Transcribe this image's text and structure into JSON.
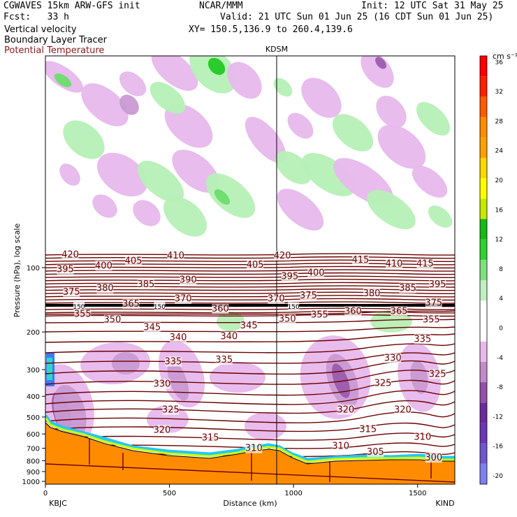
{
  "header": {
    "title_left": "CGWAVES 15km ARW-GFS init",
    "fcst": "Fcst:   33 h",
    "field1": "Vertical velocity",
    "field2": "Boundary Layer Tracer",
    "field3": "Potential Temperature",
    "center": "NCAR/MMM",
    "init": "Init: 12 UTC Sat 31 May 25",
    "valid": "Valid: 21 UTC Sun 01 Jun 25 (16 CDT Sun 01 Jun 25)",
    "xy": "XY= 150.5,136.9 to 260.4,139.6",
    "station_mid": "KDSM",
    "station_left": "KBJC",
    "station_right": "KIND",
    "colorbar_units": "cm s⁻¹"
  },
  "colors": {
    "theta_line": "#6b0000",
    "terrain": "#ff8c00",
    "tracer_line": "#000000"
  },
  "chart_data": {
    "type": "cross-section",
    "xlabel": "Distance (km)",
    "ylabel": "Pressure (hPa), log scale",
    "x_ticks": [
      0,
      500,
      1000,
      1500
    ],
    "y_ticks": [
      100,
      200,
      300,
      400,
      500,
      600,
      700,
      800,
      900,
      1000
    ],
    "xlim": [
      0,
      1650
    ],
    "station_mid_x_km": 940,
    "tropopause_tracer_label": "150",
    "theta_labels": [
      {
        "v": "420",
        "x": 100,
        "p": 87
      },
      {
        "v": "395",
        "x": 80,
        "p": 102
      },
      {
        "v": "400",
        "x": 235,
        "p": 98
      },
      {
        "v": "405",
        "x": 355,
        "p": 93
      },
      {
        "v": "410",
        "x": 525,
        "p": 88
      },
      {
        "v": "405",
        "x": 845,
        "p": 97
      },
      {
        "v": "420",
        "x": 955,
        "p": 88
      },
      {
        "v": "415",
        "x": 1270,
        "p": 92
      },
      {
        "v": "410",
        "x": 1405,
        "p": 96
      },
      {
        "v": "415",
        "x": 1530,
        "p": 96
      },
      {
        "v": "390",
        "x": 575,
        "p": 114
      },
      {
        "v": "395",
        "x": 985,
        "p": 110
      },
      {
        "v": "400",
        "x": 1090,
        "p": 106
      },
      {
        "v": "385",
        "x": 405,
        "p": 120
      },
      {
        "v": "395",
        "x": 1580,
        "p": 120
      },
      {
        "v": "385",
        "x": 1460,
        "p": 125
      },
      {
        "v": "380",
        "x": 1315,
        "p": 132
      },
      {
        "v": "375",
        "x": 1060,
        "p": 135
      },
      {
        "v": "380",
        "x": 240,
        "p": 125
      },
      {
        "v": "375",
        "x": 105,
        "p": 130
      },
      {
        "v": "370",
        "x": 555,
        "p": 140
      },
      {
        "v": "370",
        "x": 930,
        "p": 140
      },
      {
        "v": "365",
        "x": 345,
        "p": 148
      },
      {
        "v": "375",
        "x": 1565,
        "p": 146
      },
      {
        "v": "360",
        "x": 705,
        "p": 156
      },
      {
        "v": "360",
        "x": 1240,
        "p": 160
      },
      {
        "v": "365",
        "x": 1425,
        "p": 160
      },
      {
        "v": "355",
        "x": 150,
        "p": 165
      },
      {
        "v": "350",
        "x": 270,
        "p": 175
      },
      {
        "v": "355",
        "x": 1105,
        "p": 166
      },
      {
        "v": "350",
        "x": 975,
        "p": 174
      },
      {
        "v": "355",
        "x": 1555,
        "p": 175
      },
      {
        "v": "345",
        "x": 430,
        "p": 190
      },
      {
        "v": "345",
        "x": 820,
        "p": 187
      },
      {
        "v": "340",
        "x": 535,
        "p": 212
      },
      {
        "v": "340",
        "x": 740,
        "p": 210
      },
      {
        "v": "335",
        "x": 1520,
        "p": 216
      },
      {
        "v": "335",
        "x": 515,
        "p": 275
      },
      {
        "v": "335",
        "x": 720,
        "p": 270
      },
      {
        "v": "330",
        "x": 1400,
        "p": 265
      },
      {
        "v": "330",
        "x": 470,
        "p": 350
      },
      {
        "v": "325",
        "x": 1360,
        "p": 348
      },
      {
        "v": "325",
        "x": 1580,
        "p": 315
      },
      {
        "v": "325",
        "x": 505,
        "p": 463
      },
      {
        "v": "320",
        "x": 1210,
        "p": 462
      },
      {
        "v": "320",
        "x": 1440,
        "p": 462
      },
      {
        "v": "320",
        "x": 470,
        "p": 575
      },
      {
        "v": "315",
        "x": 665,
        "p": 625
      },
      {
        "v": "315",
        "x": 1300,
        "p": 570
      },
      {
        "v": "310",
        "x": 1520,
        "p": 620
      },
      {
        "v": "310",
        "x": 840,
        "p": 700
      },
      {
        "v": "310",
        "x": 1190,
        "p": 685
      },
      {
        "v": "305",
        "x": 1330,
        "p": 730
      },
      {
        "v": "300",
        "x": 1565,
        "p": 775
      },
      {
        "v": "150",
        "x": 135,
        "p": 151
      },
      {
        "v": "150",
        "x": 460,
        "p": 151
      },
      {
        "v": "150",
        "x": 1000,
        "p": 151
      }
    ],
    "colorbar": {
      "levels": [
        -20,
        -16,
        -12,
        -8,
        -4,
        0,
        4,
        8,
        12,
        16,
        20,
        24,
        28,
        32,
        36
      ],
      "colors": [
        "#7f7ff0",
        "#6f57cc",
        "#6a37b0",
        "#6a2a98",
        "#9450a8",
        "#c18ac8",
        "#e8b8ec",
        "#ffffff",
        "#ffffff",
        "#c0f0c0",
        "#80e080",
        "#30d030",
        "#18b818",
        "#c8e800",
        "#ffff00",
        "#ffd800",
        "#ffa000",
        "#ff8c00",
        "#ff5a00",
        "#ff2000",
        "#ff0000"
      ]
    }
  }
}
